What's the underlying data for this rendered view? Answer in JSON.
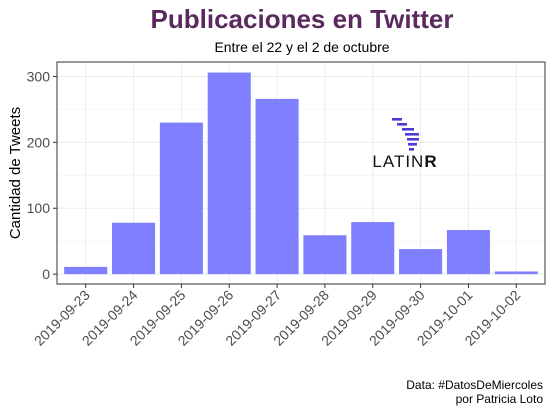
{
  "chart_data": {
    "type": "bar",
    "title": "Publicaciones en Twitter",
    "subtitle": "Entre el 22 y el 2 de octubre",
    "xlabel": "",
    "ylabel": "Cantidad de Tweets",
    "categories": [
      "2019-09-23",
      "2019-09-24",
      "2019-09-25",
      "2019-09-26",
      "2019-09-27",
      "2019-09-28",
      "2019-09-29",
      "2019-09-30",
      "2019-10-01",
      "2019-10-02"
    ],
    "values": [
      11,
      78,
      230,
      306,
      266,
      59,
      79,
      38,
      67,
      4
    ],
    "yticks": [
      0,
      100,
      200,
      300
    ],
    "ylim": [
      -15,
      322
    ],
    "bar_color": "#7f7fff",
    "grid": true,
    "legend": "none"
  },
  "caption": {
    "line1": "Data: #DatosDeMiercoles",
    "line2": "por Patricia Loto"
  },
  "logo": {
    "text_main": "LATIN",
    "text_bold": "R",
    "color": "#4c3bd6"
  }
}
